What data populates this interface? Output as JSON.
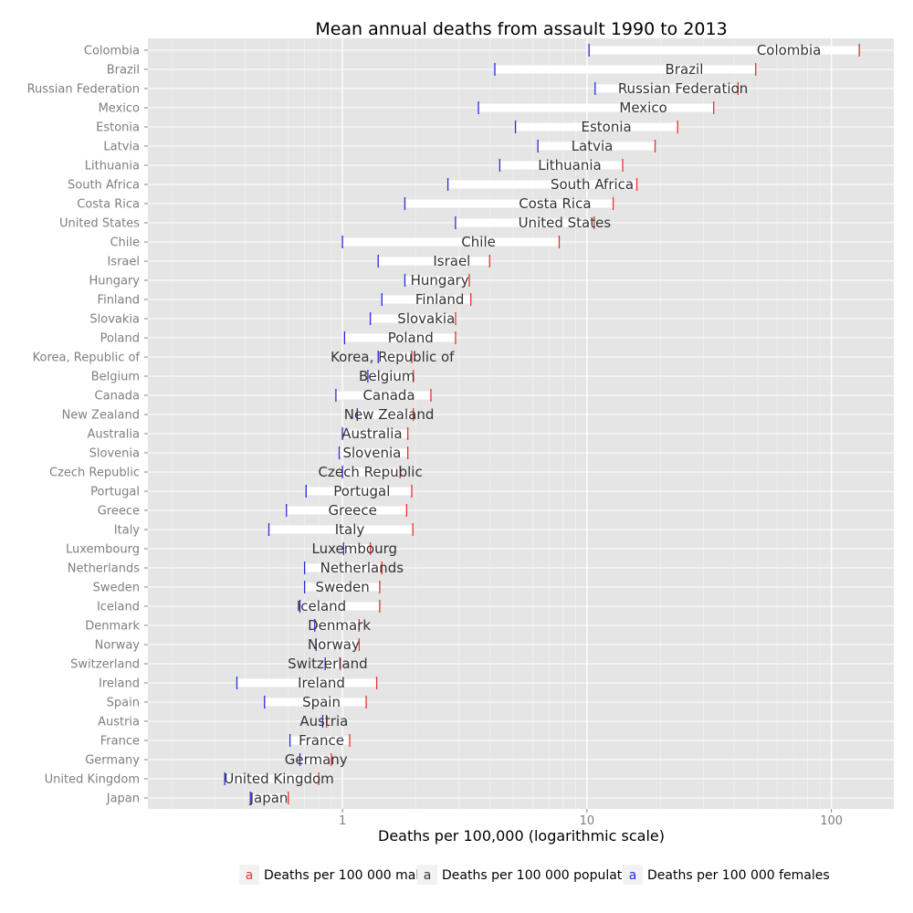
{
  "chart_data": {
    "type": "range-dot",
    "title": "Mean annual deaths from assault 1990 to 2013",
    "xlabel": "Deaths per 100,000 (logarithmic scale)",
    "ylabel": "",
    "xscale": "log",
    "xlim": [
      0.16,
      180
    ],
    "xticks": [
      1,
      10,
      100
    ],
    "xtick_labels": [
      "1",
      "10",
      "100"
    ],
    "grid": true,
    "legend_position": "bottom",
    "legend": [
      {
        "key": "males",
        "glyph": "a",
        "label": "Deaths per 100 000 males",
        "color": "#e8322d"
      },
      {
        "key": "population",
        "glyph": "a",
        "label": "Deaths per 100 000 population",
        "color": "#333333"
      },
      {
        "key": "females",
        "glyph": "a",
        "label": "Deaths per 100 000 females",
        "color": "#2a2ae0"
      }
    ],
    "countries": [
      {
        "name": "Colombia",
        "female": 10.2,
        "population": 67,
        "male": 130
      },
      {
        "name": "Brazil",
        "female": 4.2,
        "population": 25,
        "male": 49
      },
      {
        "name": "Russian Federation",
        "female": 10.8,
        "population": 24.7,
        "male": 41.5
      },
      {
        "name": "Mexico",
        "female": 3.6,
        "population": 17,
        "male": 33
      },
      {
        "name": "Estonia",
        "female": 5.1,
        "population": 12,
        "male": 23.5
      },
      {
        "name": "Latvia",
        "female": 6.3,
        "population": 10.5,
        "male": 19
      },
      {
        "name": "Lithuania",
        "female": 4.4,
        "population": 8.5,
        "male": 14
      },
      {
        "name": "South Africa",
        "female": 2.7,
        "population": 10.5,
        "male": 16
      },
      {
        "name": "Costa Rica",
        "female": 1.8,
        "population": 7.4,
        "male": 12.8
      },
      {
        "name": "United States",
        "female": 2.9,
        "population": 8.1,
        "male": 10.7
      },
      {
        "name": "Chile",
        "female": 1.0,
        "population": 3.6,
        "male": 7.7
      },
      {
        "name": "Israel",
        "female": 1.4,
        "population": 2.8,
        "male": 4.0
      },
      {
        "name": "Hungary",
        "female": 1.8,
        "population": 2.5,
        "male": 3.3
      },
      {
        "name": "Finland",
        "female": 1.45,
        "population": 2.5,
        "male": 3.35
      },
      {
        "name": "Slovakia",
        "female": 1.3,
        "population": 2.2,
        "male": 2.9
      },
      {
        "name": "Poland",
        "female": 1.02,
        "population": 1.9,
        "male": 2.9
      },
      {
        "name": "Korea, Republic of",
        "female": 1.4,
        "population": 1.6,
        "male": 1.92
      },
      {
        "name": "Belgium",
        "female": 1.27,
        "population": 1.52,
        "male": 1.95
      },
      {
        "name": "Canada",
        "female": 0.94,
        "population": 1.55,
        "male": 2.3
      },
      {
        "name": "New Zealand",
        "female": 1.15,
        "population": 1.55,
        "male": 1.95
      },
      {
        "name": "Australia",
        "female": 1.0,
        "population": 1.32,
        "male": 1.85
      },
      {
        "name": "Slovenia",
        "female": 0.97,
        "population": 1.32,
        "male": 1.85
      },
      {
        "name": "Czech Republic",
        "female": 1.0,
        "population": 1.3,
        "male": 1.72
      },
      {
        "name": "Portugal",
        "female": 0.71,
        "population": 1.2,
        "male": 1.92
      },
      {
        "name": "Greece",
        "female": 0.59,
        "population": 1.1,
        "male": 1.83
      },
      {
        "name": "Italy",
        "female": 0.5,
        "population": 1.07,
        "male": 1.94
      },
      {
        "name": "Luxembourg",
        "female": 1.01,
        "population": 1.12,
        "male": 1.3
      },
      {
        "name": "Netherlands",
        "female": 0.7,
        "population": 1.2,
        "male": 1.45
      },
      {
        "name": "Sweden",
        "female": 0.7,
        "population": 1.0,
        "male": 1.42
      },
      {
        "name": "Iceland",
        "female": 0.67,
        "population": 0.82,
        "male": 1.42
      },
      {
        "name": "Denmark",
        "female": 0.77,
        "population": 0.97,
        "male": 1.17
      },
      {
        "name": "Norway",
        "female": 0.78,
        "population": 0.92,
        "male": 1.17
      },
      {
        "name": "Switzerland",
        "female": 0.85,
        "population": 0.87,
        "male": 0.98
      },
      {
        "name": "Ireland",
        "female": 0.37,
        "population": 0.82,
        "male": 1.38
      },
      {
        "name": "Spain",
        "female": 0.48,
        "population": 0.82,
        "male": 1.25
      },
      {
        "name": "Austria",
        "female": 0.83,
        "population": 0.84,
        "male": 0.86
      },
      {
        "name": "France",
        "female": 0.61,
        "population": 0.82,
        "male": 1.07
      },
      {
        "name": "Germany",
        "female": 0.67,
        "population": 0.78,
        "male": 0.9
      },
      {
        "name": "United Kingdom",
        "female": 0.33,
        "population": 0.55,
        "male": 0.8
      },
      {
        "name": "Japan",
        "female": 0.42,
        "population": 0.5,
        "male": 0.6
      }
    ]
  }
}
